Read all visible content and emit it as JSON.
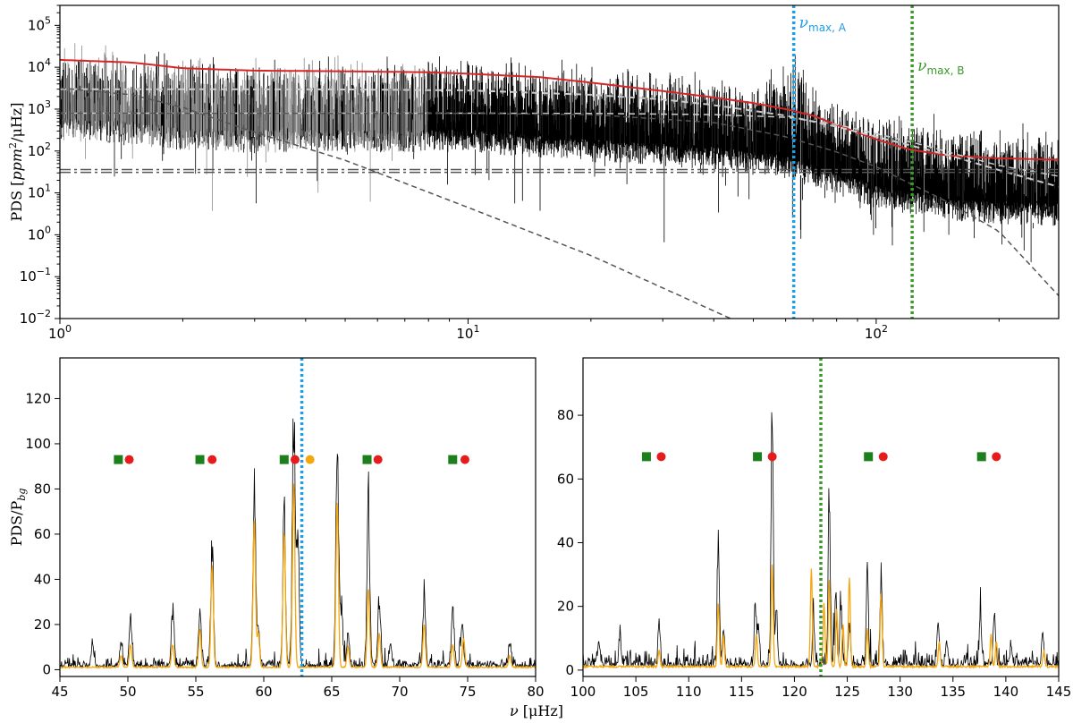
{
  "chart_data": [
    {
      "id": "top",
      "type": "line",
      "scale": "log-log",
      "xlim": [
        1,
        280
      ],
      "ylim": [
        0.01,
        300000
      ],
      "xticks": [
        {
          "value": 1,
          "base": "10",
          "exp": "0"
        },
        {
          "value": 10,
          "base": "10",
          "exp": "1"
        },
        {
          "value": 100,
          "base": "10",
          "exp": "2"
        }
      ],
      "yticks": [
        {
          "value": 0.01,
          "base": "10",
          "exp": "−2"
        },
        {
          "value": 0.1,
          "base": "10",
          "exp": "−1"
        },
        {
          "value": 1,
          "base": "10",
          "exp": "0"
        },
        {
          "value": 10,
          "base": "10",
          "exp": "1"
        },
        {
          "value": 100,
          "base": "10",
          "exp": "2"
        },
        {
          "value": 1000,
          "base": "10",
          "exp": "3"
        },
        {
          "value": 10000,
          "base": "10",
          "exp": "4"
        },
        {
          "value": 100000,
          "base": "10",
          "exp": "5"
        }
      ],
      "ylabel": {
        "pre": "PDS [",
        "italic": "ppm",
        "sup": "2",
        "post": "/μHz]"
      },
      "series": [
        {
          "name": "PDS",
          "color": "#000000",
          "x": [
            1,
            1.5,
            2,
            3,
            5,
            10,
            20,
            40,
            60,
            80,
            100,
            150,
            200,
            280
          ],
          "y": [
            5000,
            4000,
            2800,
            2500,
            2600,
            2600,
            1500,
            1000,
            600,
            250,
            120,
            60,
            50,
            45
          ]
        },
        {
          "name": "Background fit",
          "color": "#d62728",
          "x": [
            1,
            1.5,
            2,
            3,
            5,
            8,
            10,
            15,
            20,
            30,
            40,
            50,
            60,
            70,
            80,
            100,
            120,
            150,
            200,
            280
          ],
          "y": [
            15000,
            13000,
            9500,
            8300,
            8000,
            7600,
            7000,
            5800,
            4300,
            2700,
            1900,
            1400,
            1000,
            700,
            420,
            190,
            110,
            78,
            67,
            62
          ]
        },
        {
          "name": "Granulation component 1",
          "color": "#cccccc",
          "x": [
            1,
            5,
            10,
            20,
            30,
            40,
            60,
            80,
            100,
            150,
            200,
            280
          ],
          "y": [
            3000,
            2950,
            2800,
            2200,
            1700,
            1250,
            700,
            380,
            220,
            80,
            35,
            14
          ]
        },
        {
          "name": "Granulation component 2",
          "color": "#cccccc",
          "x": [
            1,
            10,
            20,
            40,
            60,
            80,
            100,
            130,
            160,
            200,
            280
          ],
          "y": [
            800,
            800,
            790,
            740,
            640,
            430,
            260,
            140,
            80,
            45,
            25
          ]
        },
        {
          "name": "Low-frequency component",
          "color": "#555555",
          "x": [
            1,
            1.5,
            2,
            3,
            5,
            10,
            20,
            44
          ],
          "y": [
            3200,
            2200,
            1100,
            280,
            60,
            4.5,
            0.32,
            0.01
          ]
        },
        {
          "name": "Steep component",
          "color": "#555555",
          "x": [
            1,
            10,
            20,
            40,
            60,
            80,
            100,
            150,
            200,
            280
          ],
          "y": [
            800,
            790,
            740,
            480,
            220,
            95,
            42,
            6,
            1.2,
            0.035
          ]
        },
        {
          "name": "White noise 1",
          "color": "#555555",
          "x": [
            1,
            280
          ],
          "y": [
            36,
            36
          ]
        },
        {
          "name": "White noise 2",
          "color": "#555555",
          "x": [
            1,
            280
          ],
          "y": [
            31,
            31
          ]
        }
      ],
      "vlines": [
        {
          "x": 62.8,
          "color": "#1f9ee8",
          "label": "ν",
          "sub": "max, A"
        },
        {
          "x": 122.5,
          "color": "#3a9a2a",
          "label": "ν",
          "sub": "max, B"
        }
      ]
    },
    {
      "id": "bottom-left",
      "type": "line",
      "xlim": [
        45,
        80
      ],
      "ylim": [
        -3,
        138
      ],
      "xticks": [
        "45",
        "50",
        "55",
        "60",
        "65",
        "70",
        "75",
        "80"
      ],
      "yticks": [
        "0",
        "20",
        "40",
        "60",
        "80",
        "100",
        "120"
      ],
      "ylabel": {
        "pre": "PDS/P",
        "sub": "bg"
      },
      "xlabel": {
        "var": "ν",
        "unit": " [μHz]"
      },
      "peaks": [
        [
          47.4,
          12
        ],
        [
          49.5,
          12
        ],
        [
          50.2,
          24
        ],
        [
          53.3,
          30
        ],
        [
          55.3,
          28
        ],
        [
          56.2,
          63
        ],
        [
          59.3,
          90
        ],
        [
          59.6,
          20
        ],
        [
          61.5,
          75
        ],
        [
          62.2,
          132
        ],
        [
          62.5,
          70
        ],
        [
          65.4,
          124
        ],
        [
          65.7,
          30
        ],
        [
          66.2,
          16
        ],
        [
          67.7,
          87
        ],
        [
          68.5,
          35
        ],
        [
          69.3,
          10
        ],
        [
          71.8,
          36
        ],
        [
          73.9,
          28
        ],
        [
          74.6,
          20
        ],
        [
          78.1,
          12
        ]
      ],
      "smooth_peaks": [
        [
          49.5,
          5
        ],
        [
          50.2,
          10
        ],
        [
          53.3,
          10
        ],
        [
          55.3,
          17
        ],
        [
          56.2,
          45
        ],
        [
          59.3,
          65
        ],
        [
          59.6,
          15
        ],
        [
          61.5,
          60
        ],
        [
          62.2,
          82
        ],
        [
          65.4,
          74
        ],
        [
          66.2,
          9
        ],
        [
          67.7,
          35
        ],
        [
          68.5,
          15
        ],
        [
          71.8,
          19
        ],
        [
          73.9,
          10
        ],
        [
          74.7,
          13
        ],
        [
          78.1,
          5
        ]
      ],
      "vline": {
        "x": 62.8,
        "color": "#1f9ee8"
      },
      "markers": [
        {
          "x": 49.3,
          "y": 93,
          "shape": "square",
          "color": "#1b7f1b"
        },
        {
          "x": 50.1,
          "y": 93,
          "shape": "circle",
          "color": "#e61c1c"
        },
        {
          "x": 55.3,
          "y": 93,
          "shape": "square",
          "color": "#1b7f1b"
        },
        {
          "x": 56.2,
          "y": 93,
          "shape": "circle",
          "color": "#e61c1c"
        },
        {
          "x": 61.5,
          "y": 93,
          "shape": "square",
          "color": "#1b7f1b"
        },
        {
          "x": 62.3,
          "y": 93,
          "shape": "circle",
          "color": "#e61c1c"
        },
        {
          "x": 63.4,
          "y": 93,
          "shape": "circle",
          "color": "#f4a711"
        },
        {
          "x": 67.6,
          "y": 93,
          "shape": "square",
          "color": "#1b7f1b"
        },
        {
          "x": 68.4,
          "y": 93,
          "shape": "circle",
          "color": "#e61c1c"
        },
        {
          "x": 73.9,
          "y": 93,
          "shape": "square",
          "color": "#1b7f1b"
        },
        {
          "x": 74.8,
          "y": 93,
          "shape": "circle",
          "color": "#e61c1c"
        }
      ]
    },
    {
      "id": "bottom-right",
      "type": "line",
      "xlim": [
        100,
        145
      ],
      "ylim": [
        -2,
        98
      ],
      "xticks": [
        "100",
        "105",
        "110",
        "115",
        "120",
        "125",
        "130",
        "135",
        "140",
        "145"
      ],
      "yticks": [
        "0",
        "20",
        "40",
        "60",
        "80"
      ],
      "peaks": [
        [
          101.5,
          10
        ],
        [
          103.5,
          12
        ],
        [
          107.2,
          16
        ],
        [
          112.8,
          48
        ],
        [
          113.3,
          14
        ],
        [
          116.3,
          24
        ],
        [
          116.6,
          14
        ],
        [
          117.9,
          95
        ],
        [
          118.3,
          20
        ],
        [
          121.8,
          18
        ],
        [
          123.3,
          63
        ],
        [
          123.9,
          26
        ],
        [
          124.4,
          22
        ],
        [
          125.2,
          14
        ],
        [
          126.9,
          35
        ],
        [
          128.2,
          34
        ],
        [
          133.6,
          14
        ],
        [
          134.4,
          10
        ],
        [
          137.6,
          18
        ],
        [
          138.9,
          21
        ],
        [
          140.5,
          8
        ],
        [
          143.5,
          12
        ]
      ],
      "smooth_peaks": [
        [
          107.2,
          5
        ],
        [
          112.8,
          20
        ],
        [
          113.3,
          10
        ],
        [
          116.4,
          10
        ],
        [
          117.9,
          32
        ],
        [
          121.6,
          31
        ],
        [
          122.8,
          20
        ],
        [
          123.3,
          27
        ],
        [
          124.0,
          18
        ],
        [
          124.6,
          13
        ],
        [
          125.2,
          28
        ],
        [
          126.9,
          12
        ],
        [
          128.2,
          23
        ],
        [
          133.7,
          8
        ],
        [
          138.6,
          10
        ],
        [
          139.1,
          8
        ],
        [
          143.6,
          5
        ]
      ],
      "vline": {
        "x": 122.5,
        "color": "#3a9a2a"
      },
      "markers": [
        {
          "x": 106.0,
          "y": 67,
          "shape": "square",
          "color": "#1b7f1b"
        },
        {
          "x": 107.4,
          "y": 67,
          "shape": "circle",
          "color": "#e61c1c"
        },
        {
          "x": 116.5,
          "y": 67,
          "shape": "square",
          "color": "#1b7f1b"
        },
        {
          "x": 117.9,
          "y": 67,
          "shape": "circle",
          "color": "#e61c1c"
        },
        {
          "x": 127.0,
          "y": 67,
          "shape": "square",
          "color": "#1b7f1b"
        },
        {
          "x": 128.4,
          "y": 67,
          "shape": "circle",
          "color": "#e61c1c"
        },
        {
          "x": 137.7,
          "y": 67,
          "shape": "square",
          "color": "#1b7f1b"
        },
        {
          "x": 139.1,
          "y": 67,
          "shape": "circle",
          "color": "#e61c1c"
        }
      ]
    }
  ]
}
